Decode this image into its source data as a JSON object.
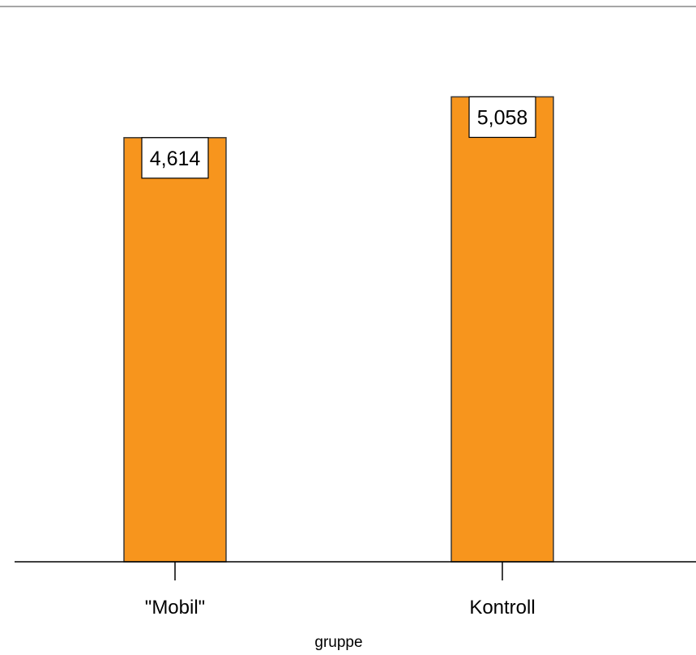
{
  "chart_data": {
    "type": "bar",
    "categories": [
      "\"Mobil\"",
      "Kontroll"
    ],
    "values": [
      4.614,
      5.058
    ],
    "data_labels": [
      "4,614",
      "5,058"
    ],
    "xlabel": "gruppe",
    "ylim": [
      0,
      5.6
    ],
    "grid": false,
    "legend": "none"
  },
  "colors": {
    "bar_fill": "#F7951D",
    "bar_stroke": "#3a3a3a",
    "axis": "#000000",
    "frame_top": "#888888",
    "label_box_fill": "#ffffff"
  }
}
